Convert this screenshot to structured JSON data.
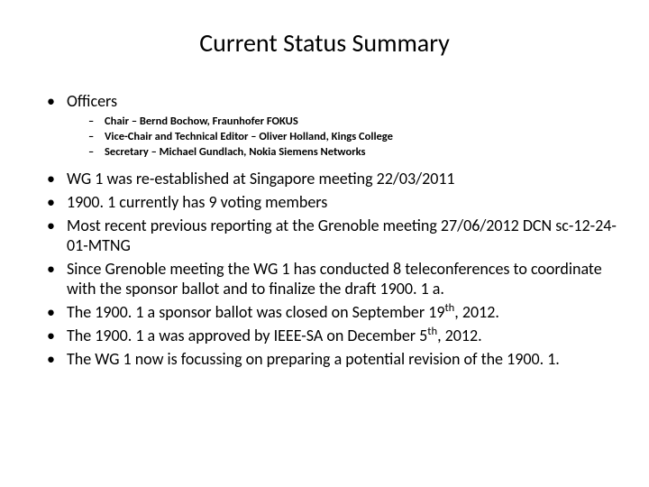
{
  "title": "Current Status Summary",
  "officers": {
    "label": "Officers",
    "items": [
      "Chair – Bernd Bochow, Fraunhofer FOKUS",
      "Vice-Chair and Technical Editor – Oliver Holland, Kings College",
      "Secretary – Michael Gundlach, Nokia Siemens Networks"
    ]
  },
  "bullets": [
    "WG 1 was re-established at Singapore meeting 22/03/2011",
    "1900. 1 currently has 9 voting members",
    "Most recent previous reporting at the Grenoble  meeting 27/06/2012 DCN sc-12-24-01-MTNG",
    "Since Grenoble meeting the WG 1 has conducted 8 teleconferences to coordinate with the sponsor ballot and to finalize the draft 1900. 1 a.",
    "The 1900. 1 a sponsor ballot was closed on September 19th, 2012.",
    "The 1900. 1 a was approved by IEEE-SA on December 5th, 2012.",
    "The WG 1 now is focussing on preparing a potential revision of the 1900. 1."
  ],
  "colors": {
    "background": "#ffffff",
    "text": "#000000"
  },
  "typography": {
    "title_fontsize": 28,
    "l1_fontsize": 18,
    "l2_fontsize": 12.5,
    "font_family": "Calibri"
  }
}
